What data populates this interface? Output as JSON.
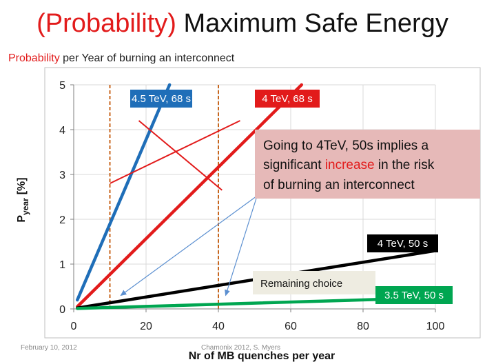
{
  "page": {
    "title_highlight": "(Probability)",
    "title_rest": "Maximum Safe Energy",
    "subtitle_highlight": "Probability",
    "subtitle_rest": "per Year of burning an interconnect",
    "footer_date": "February 10, 2012",
    "footer_source": "Chamonix 2012, S. Myers"
  },
  "chart_data": {
    "type": "line",
    "title": "",
    "xlabel": "Nr of MB quenches per year",
    "ylabel_main": "P",
    "ylabel_sub": "year",
    "ylabel_unit": "[%]",
    "xlim": [
      0,
      100
    ],
    "ylim": [
      0,
      5
    ],
    "xticks": [
      0,
      20,
      40,
      60,
      80,
      100
    ],
    "yticks": [
      0,
      1,
      2,
      3,
      4,
      5
    ],
    "grid": true,
    "series": [
      {
        "name": "4.5 TeV, 68 s",
        "color": "#1f6eb8",
        "label_bg": "#1f6eb8",
        "label_color": "#ffffff",
        "x": [
          1,
          26.5
        ],
        "y": [
          0.2,
          5
        ]
      },
      {
        "name": "4 TeV, 68 s",
        "color": "#e21b1b",
        "label_bg": "#e21b1b",
        "label_color": "#ffffff",
        "x": [
          1,
          63
        ],
        "y": [
          0.05,
          5
        ]
      },
      {
        "name": "4 TeV, 50 s",
        "color": "#000000",
        "label_bg": "#000000",
        "label_color": "#ffffff",
        "x": [
          1,
          100
        ],
        "y": [
          0.02,
          1.3
        ]
      },
      {
        "name": "3.5 TeV, 50 s",
        "color": "#00a651",
        "label_bg": "#00a651",
        "label_color": "#ffffff",
        "x": [
          1,
          100
        ],
        "y": [
          0.01,
          0.25
        ]
      }
    ],
    "vlines": [
      {
        "x": 10,
        "color": "#c8661e"
      },
      {
        "x": 40,
        "color": "#c8661e"
      }
    ],
    "cross_out": {
      "color": "#e21b1b",
      "lines": [
        {
          "x": [
            10,
            46
          ],
          "y": [
            2.8,
            4.2
          ]
        },
        {
          "x": [
            18,
            41
          ],
          "y": [
            4.2,
            2.65
          ]
        }
      ]
    },
    "annotations": [
      {
        "text": [
          "Going to 4TeV, 50s implies a",
          "significant ",
          "increase",
          " in the risk",
          "of burning an interconnect"
        ],
        "highlight_color": "#e21b1b",
        "bg": "#e6b9b8"
      },
      {
        "text": "Remaining choice",
        "bg": "#eeece1"
      }
    ],
    "arrows": [
      {
        "from": [
          52,
          2.6
        ],
        "to": [
          13,
          0.3
        ]
      },
      {
        "from": [
          51,
          2.6
        ],
        "to": [
          42,
          0.3
        ]
      }
    ]
  }
}
